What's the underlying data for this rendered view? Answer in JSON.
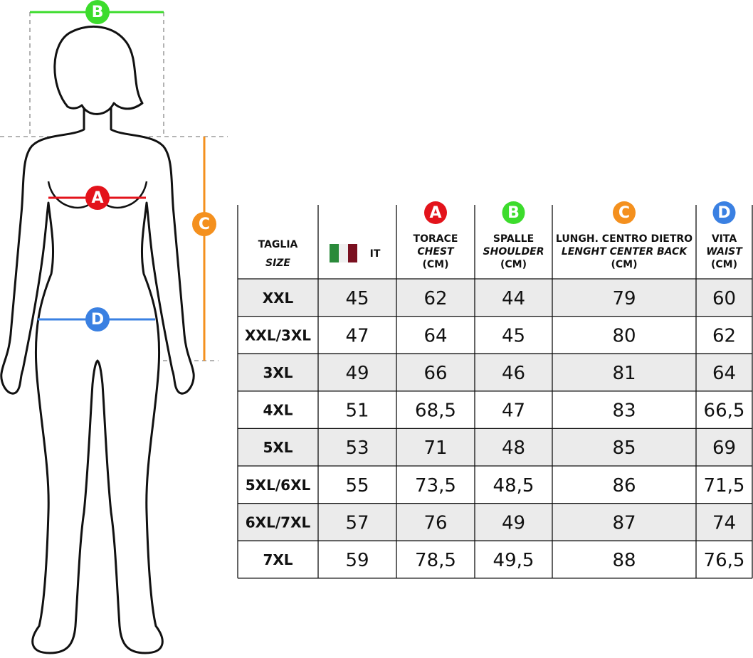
{
  "table": {
    "size_header": {
      "title": "TAGLIA",
      "subtitle": "SIZE"
    },
    "country_header": "IT",
    "columns": [
      {
        "letter": "A",
        "color": "#e3131b",
        "title": "TORACE",
        "subtitle": "CHEST",
        "unit": "(CM)"
      },
      {
        "letter": "B",
        "color": "#3cdc2c",
        "title": "SPALLE",
        "subtitle": "SHOULDER",
        "unit": "(CM)"
      },
      {
        "letter": "C",
        "color": "#f4901e",
        "title": "LUNGH. CENTRO DIETRO",
        "subtitle": "LENGHT CENTER BACK",
        "unit": "(CM)"
      },
      {
        "letter": "D",
        "color": "#3a80e2",
        "title": "VITA",
        "subtitle": "WAIST",
        "unit": "(CM)"
      }
    ],
    "rows": [
      [
        "XXL",
        "45",
        "62",
        "44",
        "79",
        "60"
      ],
      [
        "XXL/3XL",
        "47",
        "64",
        "45",
        "80",
        "62"
      ],
      [
        "3XL",
        "49",
        "66",
        "46",
        "81",
        "64"
      ],
      [
        "4XL",
        "51",
        "68,5",
        "47",
        "83",
        "66,5"
      ],
      [
        "5XL",
        "53",
        "71",
        "48",
        "85",
        "69"
      ],
      [
        "5XL/6XL",
        "55",
        "73,5",
        "48,5",
        "86",
        "71,5"
      ],
      [
        "6XL/7XL",
        "57",
        "76",
        "49",
        "87",
        "74"
      ],
      [
        "7XL",
        "59",
        "78,5",
        "49,5",
        "88",
        "76,5"
      ]
    ]
  }
}
